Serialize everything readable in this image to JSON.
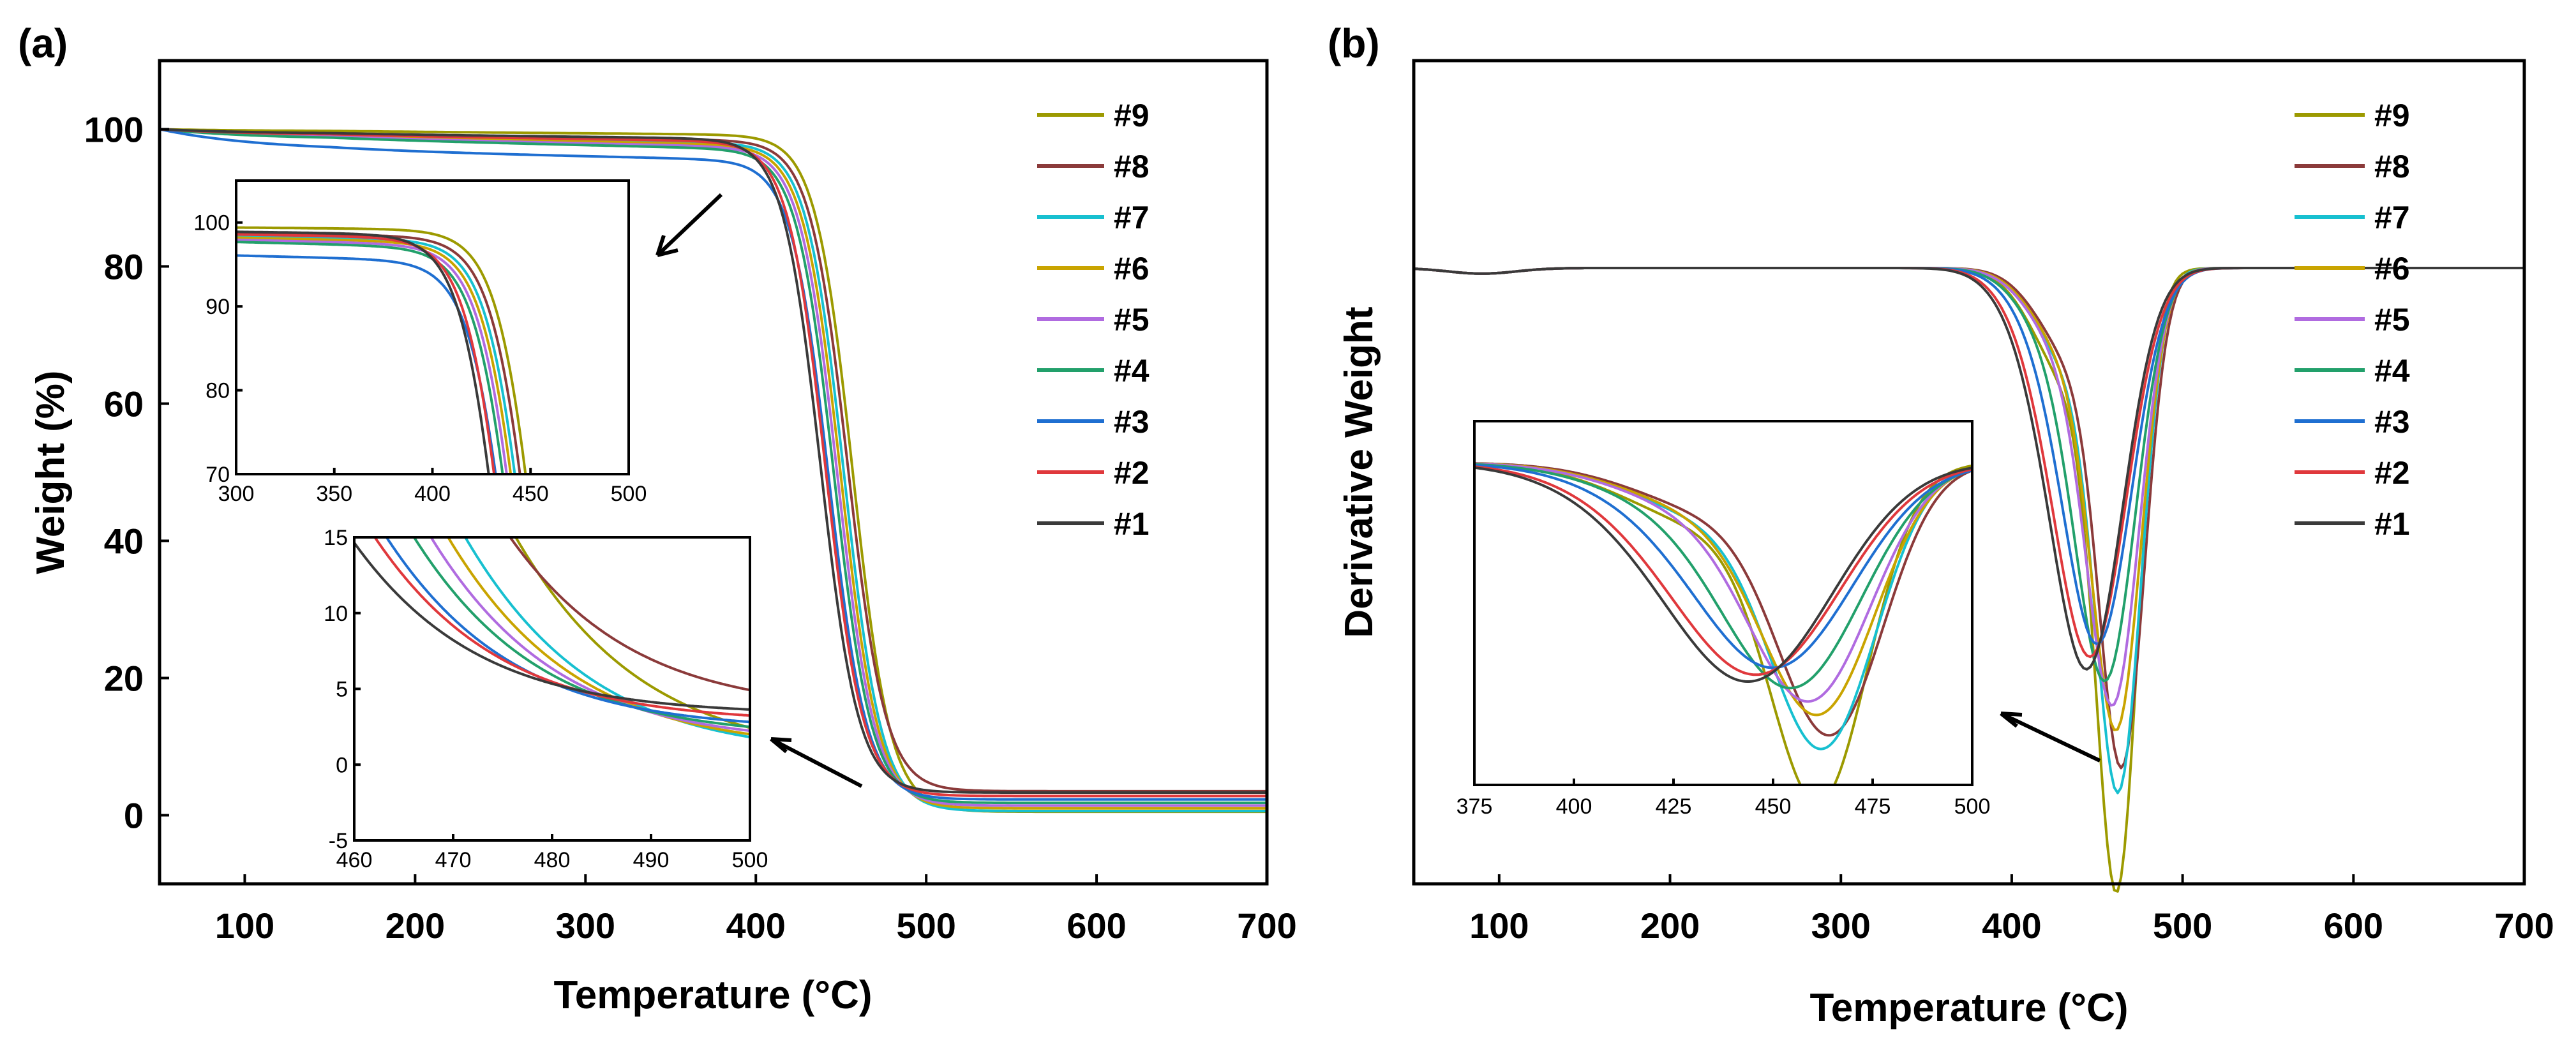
{
  "chart_data": [
    {
      "panel_label": "(a)",
      "type": "line",
      "xlabel": "Temperature (°C)",
      "ylabel": "Weight (%)",
      "xlim": [
        50,
        700
      ],
      "ylim": [
        -10,
        110
      ],
      "xticks": [
        100,
        200,
        300,
        400,
        500,
        600,
        700
      ],
      "yticks": [
        0,
        20,
        40,
        60,
        80,
        100
      ],
      "legend_position": "top-right",
      "series": [
        {
          "name": "#9",
          "color": "#9c9a00",
          "onset": 457,
          "width": 11,
          "plateau": 99.2,
          "residue": 0.5,
          "early": 0.3,
          "slope": 0.0
        },
        {
          "name": "#8",
          "color": "#8b3a3a",
          "onset": 454,
          "width": 11,
          "plateau": 98.4,
          "residue": 3.5,
          "early": 0.8,
          "slope": 0.002
        },
        {
          "name": "#7",
          "color": "#17c0d0",
          "onset": 452,
          "width": 11,
          "plateau": 98.0,
          "residue": 0.6,
          "early": 1.0,
          "slope": 0.0
        },
        {
          "name": "#6",
          "color": "#c9a400",
          "onset": 450,
          "width": 11,
          "plateau": 97.7,
          "residue": 1.0,
          "early": 1.1,
          "slope": 0.0
        },
        {
          "name": "#5",
          "color": "#b06be0",
          "onset": 448,
          "width": 11,
          "plateau": 97.4,
          "residue": 1.4,
          "early": 1.3,
          "slope": 0.0
        },
        {
          "name": "#4",
          "color": "#22a06b",
          "onset": 446,
          "width": 11,
          "plateau": 97.1,
          "residue": 1.8,
          "early": 1.5,
          "slope": 0.0
        },
        {
          "name": "#3",
          "color": "#1f6fd1",
          "onset": 443,
          "width": 11,
          "plateau": 95.5,
          "residue": 2.3,
          "early": 3.2,
          "slope": 0.0
        },
        {
          "name": "#2",
          "color": "#e0383c",
          "onset": 441,
          "width": 11,
          "plateau": 98.2,
          "residue": 2.8,
          "early": 0.9,
          "slope": 0.0
        },
        {
          "name": "#1",
          "color": "#3a3a3a",
          "onset": 438,
          "width": 11,
          "plateau": 98.6,
          "residue": 3.3,
          "early": 0.7,
          "slope": 0.0
        }
      ],
      "insets": [
        {
          "xlim": [
            300,
            500
          ],
          "ylim": [
            70,
            105
          ],
          "xticks": [
            300,
            350,
            400,
            450,
            500
          ],
          "yticks": [
            70,
            80,
            90,
            100
          ]
        },
        {
          "xlim": [
            460,
            500
          ],
          "ylim": [
            -5,
            15
          ],
          "xticks": [
            460,
            470,
            480,
            490,
            500
          ],
          "yticks": [
            -5,
            0,
            5,
            10,
            15
          ]
        }
      ]
    },
    {
      "panel_label": "(b)",
      "type": "line",
      "xlabel": "Temperature (°C)",
      "ylabel": "Derivative Weight",
      "xlim": [
        50,
        700
      ],
      "xticks": [
        100,
        200,
        300,
        400,
        500,
        600,
        700
      ],
      "legend_position": "top-right",
      "series": [
        {
          "name": "#9",
          "color": "#9c9a00",
          "peak": 462,
          "sigma": 12,
          "depth": 1.0
        },
        {
          "name": "#8",
          "color": "#8b3a3a",
          "peak": 465,
          "sigma": 13,
          "depth": 0.8
        },
        {
          "name": "#7",
          "color": "#17c0d0",
          "peak": 463,
          "sigma": 13,
          "depth": 0.84
        },
        {
          "name": "#6",
          "color": "#c9a400",
          "peak": 462,
          "sigma": 14,
          "depth": 0.74
        },
        {
          "name": "#5",
          "color": "#b06be0",
          "peak": 460,
          "sigma": 15,
          "depth": 0.7
        },
        {
          "name": "#4",
          "color": "#22a06b",
          "peak": 456,
          "sigma": 17,
          "depth": 0.66
        },
        {
          "name": "#3",
          "color": "#1f6fd1",
          "peak": 452,
          "sigma": 19,
          "depth": 0.6
        },
        {
          "name": "#2",
          "color": "#e0383c",
          "peak": 448,
          "sigma": 20,
          "depth": 0.62
        },
        {
          "name": "#1",
          "color": "#3a3a3a",
          "peak": 446,
          "sigma": 20,
          "depth": 0.64
        }
      ],
      "insets": [
        {
          "xlim": [
            375,
            500
          ],
          "xticks": [
            375,
            400,
            425,
            450,
            475,
            500
          ]
        }
      ]
    }
  ]
}
